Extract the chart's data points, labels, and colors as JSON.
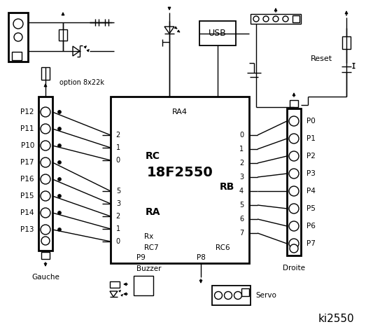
{
  "bg_color": "#ffffff",
  "chip_label": "18F2550",
  "chip_sublabel": "RA4",
  "rc_label": "RC",
  "ra_label": "RA",
  "rb_label": "RB",
  "rx_label": "Rx",
  "rc7_label": "RC7",
  "rc6_label": "RC6",
  "gauche_label": "Gauche",
  "droite_label": "Droite",
  "servo_label": "Servo",
  "buzzer_label": "Buzzer",
  "p8_label": "P8",
  "p9_label": "P9",
  "usb_label": "USB",
  "reset_label": "Reset",
  "option_label": "option 8x22k",
  "title": "ki2550",
  "left_labels": [
    "P12",
    "P11",
    "P10",
    "P17",
    "P16",
    "P15",
    "P14",
    "P13"
  ],
  "right_labels": [
    "P0",
    "P1",
    "P2",
    "P3",
    "P4",
    "P5",
    "P6",
    "P7"
  ],
  "rc_pins": [
    "2",
    "1",
    "0"
  ],
  "ra_pins": [
    "5",
    "3",
    "2",
    "1",
    "0"
  ],
  "rb_pins": [
    "0",
    "1",
    "2",
    "3",
    "4",
    "5",
    "6",
    "7"
  ]
}
